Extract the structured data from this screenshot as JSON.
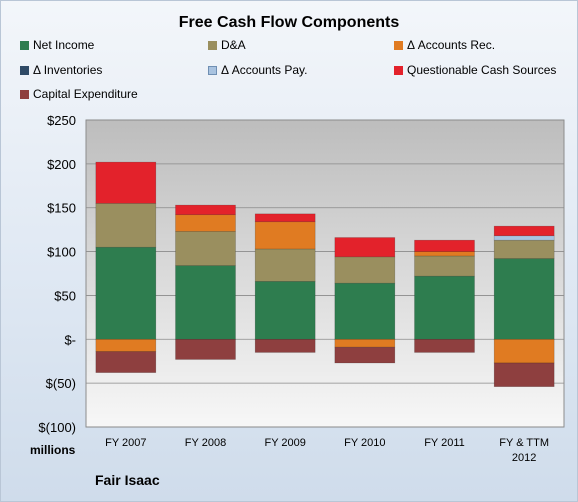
{
  "chart_data": {
    "type": "bar",
    "stacked": true,
    "title": "Free Cash Flow Components",
    "categories": [
      "FY 2007",
      "FY 2008",
      "FY 2009",
      "FY 2010",
      "FY 2011",
      "FY & TTM 2012"
    ],
    "series": [
      {
        "name": "Net Income",
        "color": "#2e7d4f",
        "values": [
          105,
          84,
          66,
          64,
          72,
          92
        ]
      },
      {
        "name": "D&A",
        "color": "#9a8f5f",
        "values": [
          50,
          39,
          37,
          30,
          23,
          21
        ]
      },
      {
        "name": "Δ Accounts Rec.",
        "color": "#e07b22",
        "values": [
          -14,
          19,
          31,
          -9,
          5,
          -27
        ]
      },
      {
        "name": "Δ Inventories",
        "color": "#2f4a66",
        "values": [
          0,
          0,
          0,
          0,
          0,
          0
        ]
      },
      {
        "name": "Δ Accounts Pay.",
        "color": "#a9c3e0",
        "values": [
          0,
          0,
          0,
          0,
          0,
          5
        ]
      },
      {
        "name": "Questionable Cash Sources",
        "color": "#e3222b",
        "values": [
          47,
          11,
          9,
          22,
          13,
          11
        ]
      },
      {
        "name": "Capital Expenditure",
        "color": "#8e3f3f",
        "values": [
          -24,
          -23,
          -15,
          -18,
          -15,
          -27
        ]
      }
    ],
    "yticks": [
      "$250",
      "$200",
      "$150",
      "$100",
      "$50",
      "$-",
      "$(50)",
      "$(100)"
    ],
    "ylim": [
      -100,
      250
    ],
    "units_label": "millions",
    "legend_position": "top",
    "grid": true
  },
  "footer": {
    "company": "Fair Isaac"
  }
}
